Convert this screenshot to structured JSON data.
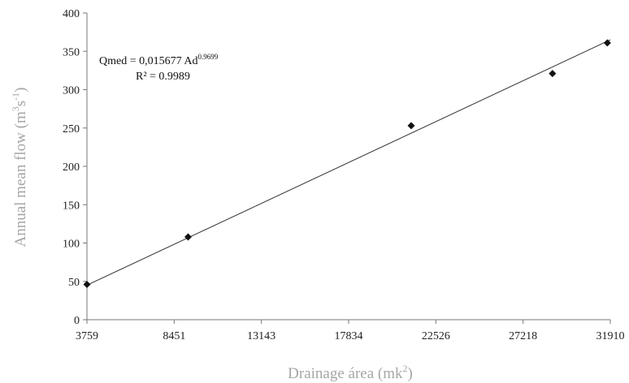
{
  "chart_data": {
    "type": "scatter",
    "xlabel": "Drainage área (mk²)",
    "xlabel_parts": {
      "base": "Drainage área (mk",
      "sup": "2",
      "end": ")"
    },
    "ylabel": "Annual mean flow (m³s⁻¹)",
    "ylabel_parts": {
      "base": "Annual mean flow (m",
      "sup1": "3",
      "mid": "s",
      "sup2": "-1",
      "end": ")"
    },
    "x_ticks": [
      3759,
      8451,
      13143,
      17834,
      22526,
      27218,
      31910
    ],
    "x_tick_labels": [
      "3759",
      "8451",
      "13143",
      "17834",
      "22526",
      "27218",
      "31910"
    ],
    "y_ticks": [
      0,
      50,
      100,
      150,
      200,
      250,
      300,
      350,
      400
    ],
    "y_tick_labels": [
      "0",
      "50",
      "100",
      "150",
      "200",
      "250",
      "300",
      "350",
      "400"
    ],
    "xlim": [
      3759,
      31910
    ],
    "ylim": [
      0,
      400
    ],
    "grid": false,
    "legend": false,
    "points": [
      {
        "x": 3759,
        "y": 46
      },
      {
        "x": 9200,
        "y": 108
      },
      {
        "x": 21200,
        "y": 253
      },
      {
        "x": 28800,
        "y": 321
      },
      {
        "x": 31750,
        "y": 361
      }
    ],
    "trendline": {
      "type": "power",
      "coefficient": 0.015677,
      "exponent": 0.9699,
      "endpoints": [
        {
          "x": 3759,
          "y": 45
        },
        {
          "x": 31910,
          "y": 365
        }
      ]
    },
    "annotation": {
      "equation_main": "Qmed = 0,015677 Ad",
      "equation_exponent": "0.9699",
      "r2_label": "R² = 0.9989"
    },
    "colors": {
      "marker": "#111111",
      "line": "#333333",
      "axis": "#777777",
      "axis_title": "#a6a6a6"
    }
  }
}
